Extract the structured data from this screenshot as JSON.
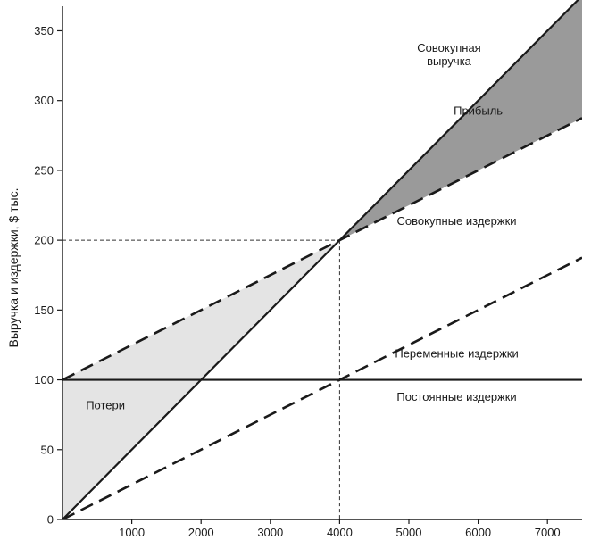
{
  "chart_data": {
    "type": "line",
    "ylabel": "Выручка и издержки, $ тыс.",
    "xlabel": "",
    "xlim": [
      0,
      7500
    ],
    "ylim": [
      0,
      365
    ],
    "xticks": [
      1000,
      2000,
      3000,
      4000,
      5000,
      6000,
      7000
    ],
    "yticks": [
      0,
      50,
      100,
      150,
      200,
      250,
      300,
      350
    ],
    "grid": false,
    "series": [
      {
        "name": "Совокупная выручка",
        "x": [
          0,
          7500
        ],
        "y": [
          0,
          375
        ],
        "style": "solid"
      },
      {
        "name": "Совокупные издержки",
        "x": [
          0,
          7500
        ],
        "y": [
          100,
          287.5
        ],
        "style": "dashed"
      },
      {
        "name": "Переменные издержки",
        "x": [
          0,
          7500
        ],
        "y": [
          0,
          187.5
        ],
        "style": "dashed"
      },
      {
        "name": "Постоянные издержки",
        "x": [
          0,
          7500
        ],
        "y": [
          100,
          100
        ],
        "style": "solid"
      }
    ],
    "break_even": {
      "x": 4000,
      "y": 200
    },
    "regions": [
      {
        "name": "Потери",
        "color": "#e4e4e4"
      },
      {
        "name": "Прибыль",
        "color": "#9a9a9a"
      }
    ],
    "annotations": [
      {
        "id": "revenue",
        "lines": [
          "Совокупная",
          "выручка"
        ],
        "x": 5580,
        "y": 335
      },
      {
        "id": "profit",
        "lines": [
          "Прибыль"
        ],
        "x": 6000,
        "y": 290
      },
      {
        "id": "total-cost",
        "lines": [
          "Совокупные издержки"
        ],
        "x": 5690,
        "y": 211
      },
      {
        "id": "variable-cost",
        "lines": [
          "Переменные издержки"
        ],
        "x": 5690,
        "y": 116
      },
      {
        "id": "fixed-cost",
        "lines": [
          "Постоянные издержки"
        ],
        "x": 5690,
        "y": 85
      },
      {
        "id": "loss",
        "lines": [
          "Потери"
        ],
        "x": 620,
        "y": 79
      }
    ]
  }
}
